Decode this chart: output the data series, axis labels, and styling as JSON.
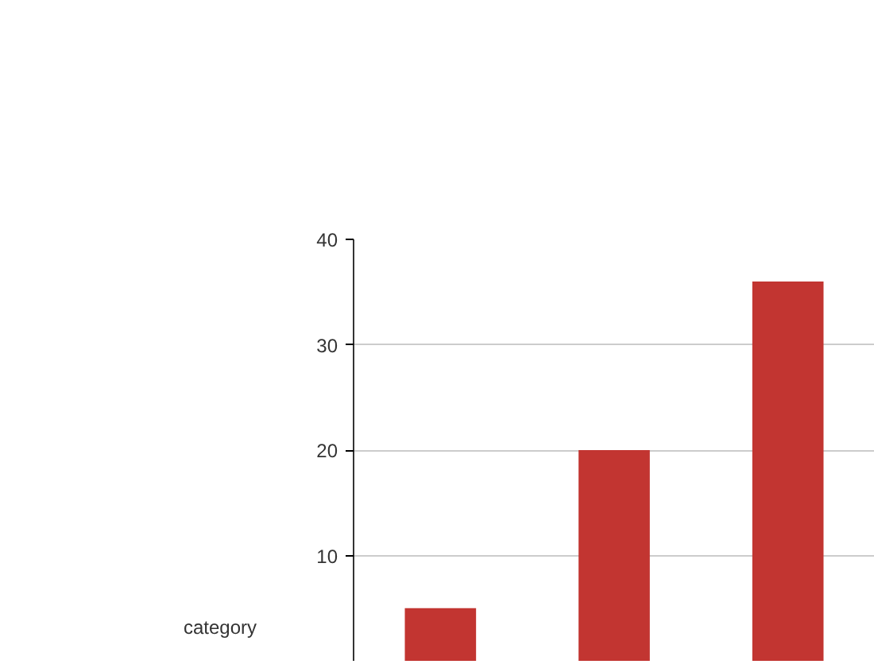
{
  "chart_data": {
    "type": "bar",
    "categories": [
      null,
      null,
      null
    ],
    "values": [
      5,
      20,
      36
    ],
    "color": "#c23531",
    "ylim": [
      0,
      40
    ],
    "yticks": [
      10,
      20,
      30,
      40
    ],
    "grid": "y",
    "tick_labels": "y",
    "annotations": [
      "category"
    ]
  }
}
